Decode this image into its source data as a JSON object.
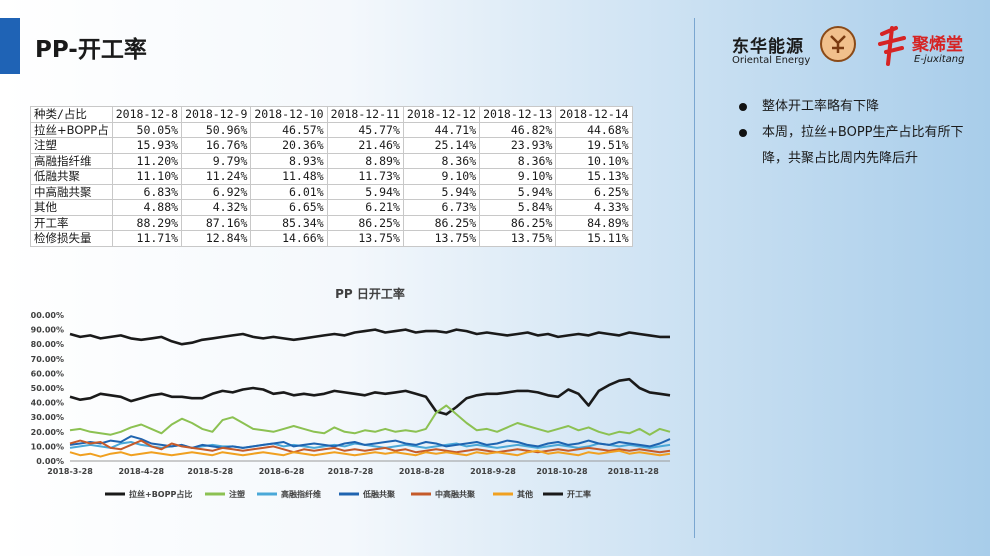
{
  "header": {
    "title": "PP-开工率"
  },
  "logos": {
    "logo1": {
      "cn": "东华能源",
      "en": "Oriental Energy",
      "icon": "seal-logo-icon"
    },
    "logo2": {
      "cn": "聚烯堂",
      "en": "E-juxitang",
      "icon": "juxitang-mark-icon"
    }
  },
  "table": {
    "header": [
      "种类/占比",
      "2018-12-8",
      "2018-12-9",
      "2018-12-10",
      "2018-12-11",
      "2018-12-12",
      "2018-12-13",
      "2018-12-14"
    ],
    "rows": [
      [
        "拉丝+BOPP占",
        "50.05%",
        "50.96%",
        "46.57%",
        "45.77%",
        "44.71%",
        "46.82%",
        "44.68%"
      ],
      [
        "注塑",
        "15.93%",
        "16.76%",
        "20.36%",
        "21.46%",
        "25.14%",
        "23.93%",
        "19.51%"
      ],
      [
        "高融指纤维",
        "11.20%",
        "9.79%",
        "8.93%",
        "8.89%",
        "8.36%",
        "8.36%",
        "10.10%"
      ],
      [
        "低融共聚",
        "11.10%",
        "11.24%",
        "11.48%",
        "11.73%",
        "9.10%",
        "9.10%",
        "15.13%"
      ],
      [
        "中高融共聚",
        "6.83%",
        "6.92%",
        "6.01%",
        "5.94%",
        "5.94%",
        "5.94%",
        "6.25%"
      ],
      [
        "其他",
        "4.88%",
        "4.32%",
        "6.65%",
        "6.21%",
        "6.73%",
        "5.84%",
        "4.33%"
      ],
      [
        "开工率",
        "88.29%",
        "87.16%",
        "85.34%",
        "86.25%",
        "86.25%",
        "86.25%",
        "84.89%"
      ],
      [
        "检修损失量",
        "11.71%",
        "12.84%",
        "14.66%",
        "13.75%",
        "13.75%",
        "13.75%",
        "15.11%"
      ]
    ]
  },
  "bullets": [
    "整体开工率略有下降",
    "本周，拉丝+BOPP生产占比有所下降，共聚占比周内先降后升"
  ],
  "chart_data": {
    "type": "line",
    "title": "PP 日开工率",
    "xlabel": "",
    "ylabel": "",
    "ylim": [
      0,
      100
    ],
    "ytick_labels": [
      "0.00%",
      "10.00%",
      "20.00%",
      "30.00%",
      "40.00%",
      "50.00%",
      "60.00%",
      "70.00%",
      "80.00%",
      "90.00%",
      "100.00%"
    ],
    "x_tick_labels": [
      "2018-3-28",
      "2018-4-28",
      "2018-5-28",
      "2018-6-28",
      "2018-7-28",
      "2018-8-28",
      "2018-9-28",
      "2018-10-28",
      "2018-11-28"
    ],
    "x_start": "2018-3-28",
    "x_end": "2018-12-14",
    "legend_position": "bottom",
    "series": [
      {
        "name": "拉丝+BOPP占比",
        "color": "#1a1a1a",
        "values": [
          44,
          42,
          43,
          46,
          45,
          44,
          41,
          43,
          45,
          46,
          44,
          44,
          43,
          43,
          46,
          48,
          47,
          49,
          50,
          49,
          46,
          47,
          45,
          46,
          45,
          46,
          48,
          47,
          46,
          45,
          47,
          46,
          47,
          48,
          46,
          44,
          34,
          32,
          37,
          43,
          45,
          46,
          46,
          47,
          48,
          48,
          47,
          45,
          44,
          49,
          46,
          38,
          48,
          52,
          55,
          56,
          50,
          47,
          46,
          45
        ]
      },
      {
        "name": "注塑",
        "color": "#8cc152",
        "values": [
          21,
          22,
          20,
          19,
          18,
          20,
          23,
          25,
          22,
          19,
          25,
          29,
          26,
          22,
          20,
          28,
          30,
          26,
          22,
          21,
          20,
          22,
          24,
          22,
          20,
          19,
          23,
          20,
          19,
          21,
          20,
          22,
          20,
          21,
          20,
          22,
          33,
          38,
          32,
          26,
          21,
          22,
          20,
          23,
          26,
          24,
          22,
          20,
          22,
          24,
          21,
          23,
          20,
          18,
          20,
          19,
          22,
          18,
          22,
          20
        ]
      },
      {
        "name": "高融指纤维",
        "color": "#4aa8d8",
        "values": [
          9,
          10,
          11,
          10,
          9,
          12,
          13,
          11,
          10,
          9,
          10,
          11,
          9,
          10,
          11,
          10,
          10,
          9,
          10,
          11,
          12,
          10,
          11,
          10,
          9,
          10,
          11,
          10,
          12,
          11,
          10,
          9,
          10,
          11,
          10,
          9,
          10,
          11,
          12,
          10,
          11,
          10,
          9,
          10,
          11,
          10,
          9,
          10,
          11,
          10,
          9,
          10,
          12,
          11,
          10,
          11,
          10,
          9,
          10,
          11
        ]
      },
      {
        "name": "低融共聚",
        "color": "#1f64b0",
        "values": [
          11,
          12,
          13,
          12,
          14,
          13,
          17,
          15,
          12,
          11,
          10,
          11,
          9,
          11,
          10,
          9,
          10,
          9,
          10,
          11,
          12,
          13,
          10,
          11,
          12,
          11,
          10,
          12,
          13,
          11,
          12,
          13,
          14,
          12,
          11,
          13,
          12,
          10,
          11,
          12,
          13,
          11,
          12,
          14,
          13,
          11,
          10,
          12,
          13,
          11,
          12,
          14,
          12,
          11,
          13,
          12,
          11,
          10,
          12,
          15
        ]
      },
      {
        "name": "中高融共聚",
        "color": "#c55a2a",
        "values": [
          12,
          14,
          12,
          13,
          9,
          8,
          11,
          14,
          10,
          8,
          12,
          10,
          9,
          8,
          7,
          9,
          8,
          7,
          8,
          9,
          10,
          8,
          6,
          8,
          7,
          8,
          9,
          7,
          8,
          7,
          8,
          9,
          7,
          8,
          6,
          7,
          8,
          7,
          6,
          7,
          8,
          7,
          6,
          7,
          8,
          7,
          6,
          7,
          8,
          7,
          8,
          9,
          8,
          7,
          8,
          7,
          8,
          7,
          6,
          7
        ]
      },
      {
        "name": "其他",
        "color": "#f0a020",
        "values": [
          6,
          4,
          5,
          3,
          5,
          6,
          4,
          5,
          6,
          5,
          4,
          5,
          6,
          5,
          4,
          6,
          5,
          4,
          5,
          6,
          5,
          4,
          6,
          5,
          4,
          5,
          6,
          5,
          4,
          5,
          6,
          5,
          6,
          5,
          4,
          6,
          5,
          6,
          5,
          4,
          6,
          5,
          6,
          5,
          4,
          6,
          7,
          5,
          6,
          5,
          4,
          6,
          5,
          6,
          7,
          5,
          6,
          5,
          4,
          5
        ]
      },
      {
        "name": "开工率",
        "color": "#1a1a1a",
        "values": [
          87,
          85,
          86,
          84,
          85,
          86,
          84,
          83,
          84,
          85,
          82,
          80,
          81,
          83,
          84,
          85,
          86,
          87,
          85,
          84,
          85,
          84,
          83,
          84,
          85,
          86,
          87,
          86,
          88,
          89,
          90,
          88,
          89,
          90,
          88,
          89,
          89,
          88,
          90,
          89,
          87,
          88,
          87,
          86,
          87,
          88,
          86,
          87,
          85,
          86,
          87,
          86,
          88,
          87,
          86,
          88,
          87,
          86,
          85,
          85
        ]
      }
    ]
  }
}
